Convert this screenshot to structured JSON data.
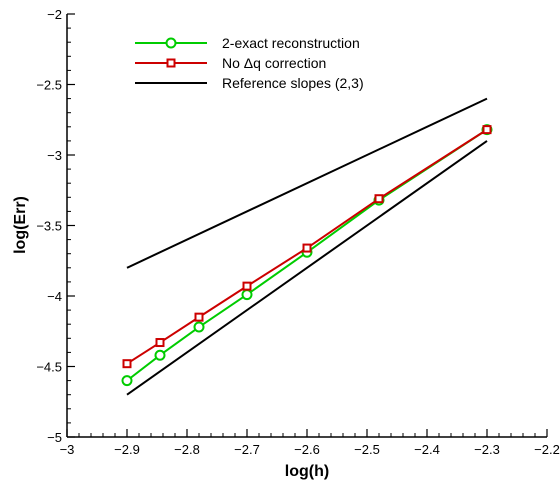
{
  "chart_data": {
    "type": "line",
    "xlabel": "log(h)",
    "ylabel": "log(Err)",
    "xlim": [
      -3,
      -2.2
    ],
    "ylim": [
      -5,
      -2
    ],
    "xticks": [
      -3,
      -2.9,
      -2.8,
      -2.7,
      -2.6,
      -2.5,
      -2.4,
      -2.3,
      -2.2
    ],
    "xtick_labels": [
      "−3",
      "−2.9",
      "−2.8",
      "−2.7",
      "−2.6",
      "−2.5",
      "−2.4",
      "−2.3",
      "−2.2"
    ],
    "yticks": [
      -5,
      -4.5,
      -4,
      -3.5,
      -3,
      -2.5,
      -2
    ],
    "ytick_labels": [
      "−5",
      "−4.5",
      "−4",
      "−3.5",
      "−3",
      "−2.5",
      "−2"
    ],
    "grid": false,
    "legend_position": "top-left",
    "series": [
      {
        "name": "2-exact reconstruction",
        "color": "#00cc00",
        "marker": "circle",
        "x": [
          -2.9,
          -2.845,
          -2.78,
          -2.7,
          -2.6,
          -2.48,
          -2.3
        ],
        "y": [
          -4.6,
          -4.42,
          -4.22,
          -3.99,
          -3.69,
          -3.32,
          -2.82
        ]
      },
      {
        "name": "No Δq correction",
        "color": "#cc0000",
        "marker": "square",
        "x": [
          -2.9,
          -2.845,
          -2.78,
          -2.7,
          -2.6,
          -2.48,
          -2.3
        ],
        "y": [
          -4.48,
          -4.33,
          -4.15,
          -3.93,
          -3.66,
          -3.31,
          -2.82
        ]
      },
      {
        "name": "Reference slopes (2,3)",
        "color": "#000000",
        "marker": "none",
        "segments": [
          {
            "x": [
              -2.9,
              -2.3
            ],
            "y": [
              -3.8,
              -2.6
            ]
          },
          {
            "x": [
              -2.9,
              -2.3
            ],
            "y": [
              -4.7,
              -2.9
            ]
          }
        ]
      }
    ]
  }
}
